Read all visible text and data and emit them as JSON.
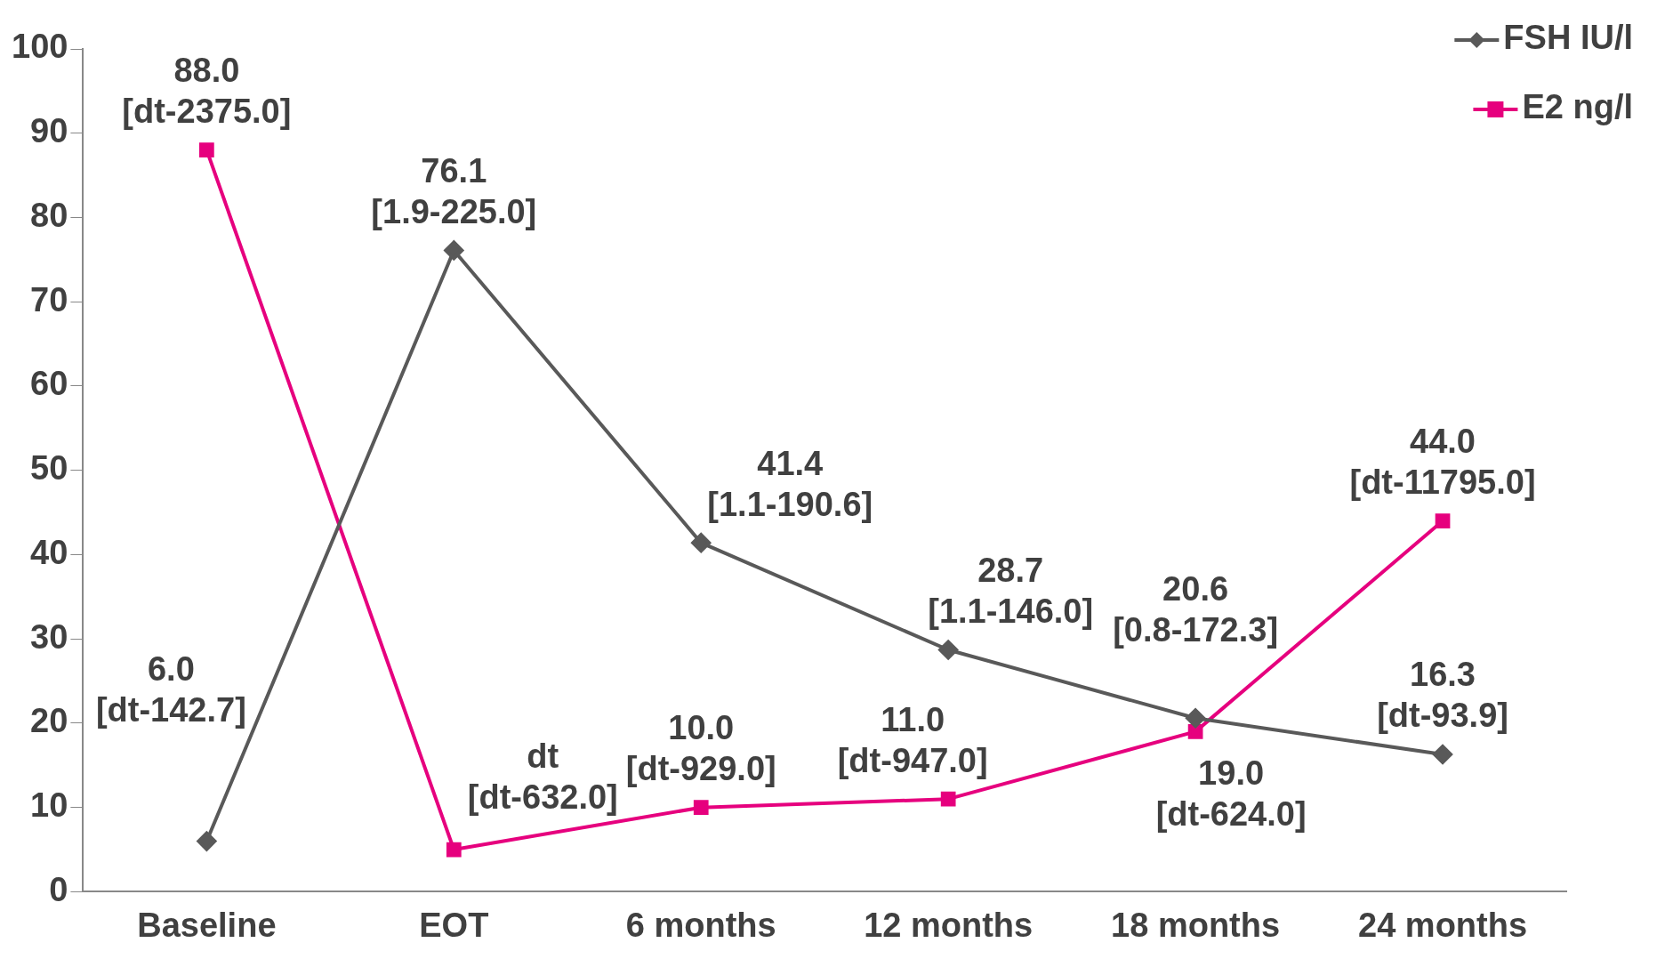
{
  "chart_data": {
    "type": "line",
    "categories": [
      "Baseline",
      "EOT",
      "6 months",
      "12 months",
      "18 months",
      "24 months"
    ],
    "series": [
      {
        "name": "FSH IU/l",
        "color": "#595959",
        "marker": "diamond",
        "values": [
          6.0,
          76.1,
          41.4,
          28.7,
          20.6,
          16.3
        ],
        "value_labels": [
          "6.0\n[dt-142.7]",
          "76.1\n[1.9-225.0]",
          "41.4\n[1.1-190.6]",
          "28.7\n[1.1-146.0]",
          "20.6\n[0.8-172.3]",
          "16.3\n[dt-93.9]"
        ]
      },
      {
        "name": "E2 ng/l",
        "color": "#e6007e",
        "marker": "square",
        "values": [
          88.0,
          5,
          10.0,
          11.0,
          19.0,
          44.0
        ],
        "value_labels": [
          "88.0\n[dt-2375.0]",
          "dt\n[dt-632.0]",
          "10.0\n[dt-929.0]",
          "11.0\n[dt-947.0]",
          "19.0\n[dt-624.0]",
          "44.0\n[dt-11795.0]"
        ]
      }
    ],
    "ylim": [
      0,
      100
    ],
    "yticks": [
      0,
      10,
      20,
      30,
      40,
      50,
      60,
      70,
      80,
      90,
      100
    ],
    "grid": false,
    "legend": "top right",
    "line_style": "solid"
  }
}
